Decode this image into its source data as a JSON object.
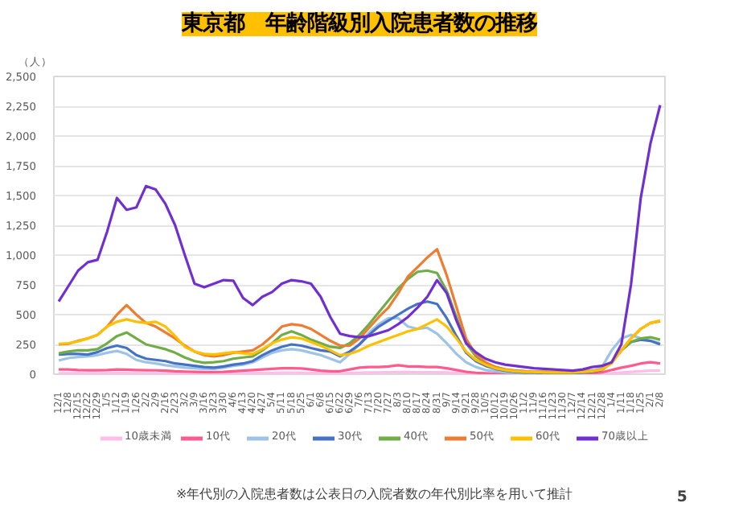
{
  "chart_data": {
    "type": "line",
    "title": "東京都　年齢階級別入院患者数の推移",
    "ylabel": "（人）",
    "categories": [
      "12/1",
      "12/8",
      "12/15",
      "12/22",
      "12/29",
      "1/5",
      "1/12",
      "1/19",
      "1/26",
      "2/2",
      "2/9",
      "2/16",
      "2/23",
      "3/2",
      "3/9",
      "3/16",
      "3/23",
      "3/30",
      "4/6",
      "4/13",
      "4/20",
      "4/27",
      "5/4",
      "5/11",
      "5/18",
      "5/25",
      "6/1",
      "6/8",
      "6/15",
      "6/22",
      "6/29",
      "7/6",
      "7/13",
      "7/20",
      "7/27",
      "8/3",
      "8/10",
      "8/17",
      "8/24",
      "8/31",
      "9/7",
      "9/14",
      "9/21",
      "9/28",
      "10/5",
      "10/12",
      "10/19",
      "10/26",
      "11/2",
      "11/9",
      "11/16",
      "11/23",
      "11/30",
      "12/7",
      "12/14",
      "12/21",
      "12/28",
      "1/4",
      "1/11",
      "1/18",
      "1/25",
      "2/1",
      "2/8"
    ],
    "series": [
      {
        "name": "10歳未満",
        "color": "#ffbde9",
        "values": [
          8,
          8,
          8,
          8,
          7,
          8,
          9,
          9,
          8,
          8,
          7,
          7,
          6,
          6,
          5,
          5,
          5,
          6,
          7,
          8,
          9,
          10,
          11,
          12,
          12,
          12,
          10,
          9,
          8,
          8,
          10,
          12,
          14,
          15,
          16,
          18,
          18,
          17,
          16,
          16,
          14,
          10,
          6,
          4,
          3,
          2,
          2,
          2,
          2,
          2,
          2,
          2,
          2,
          2,
          2,
          3,
          4,
          8,
          14,
          20,
          25,
          30,
          30
        ]
      },
      {
        "name": "10代",
        "color": "#ff5b8f",
        "values": [
          40,
          40,
          35,
          33,
          33,
          35,
          40,
          38,
          35,
          33,
          32,
          30,
          25,
          22,
          20,
          18,
          18,
          20,
          25,
          30,
          35,
          40,
          45,
          50,
          50,
          48,
          40,
          30,
          25,
          25,
          40,
          55,
          60,
          60,
          65,
          75,
          65,
          65,
          60,
          60,
          50,
          35,
          20,
          12,
          8,
          5,
          5,
          4,
          4,
          4,
          4,
          4,
          4,
          4,
          5,
          8,
          15,
          35,
          55,
          70,
          90,
          100,
          90
        ]
      },
      {
        "name": "20代",
        "color": "#9dc3e6",
        "values": [
          115,
          135,
          145,
          150,
          160,
          180,
          195,
          170,
          120,
          100,
          90,
          75,
          65,
          55,
          50,
          45,
          45,
          55,
          70,
          80,
          100,
          140,
          180,
          200,
          210,
          200,
          180,
          160,
          130,
          100,
          170,
          250,
          350,
          420,
          470,
          470,
          400,
          380,
          390,
          340,
          260,
          170,
          100,
          60,
          35,
          25,
          15,
          12,
          10,
          10,
          10,
          10,
          10,
          10,
          15,
          20,
          60,
          200,
          300,
          330,
          300,
          280,
          260
        ]
      },
      {
        "name": "30代",
        "color": "#4472c4",
        "values": [
          165,
          170,
          170,
          165,
          185,
          220,
          240,
          220,
          160,
          130,
          120,
          110,
          90,
          80,
          70,
          60,
          55,
          65,
          80,
          90,
          110,
          160,
          200,
          230,
          250,
          240,
          220,
          200,
          190,
          150,
          190,
          250,
          330,
          400,
          450,
          500,
          550,
          590,
          610,
          590,
          470,
          320,
          180,
          110,
          70,
          45,
          30,
          20,
          15,
          15,
          10,
          10,
          10,
          10,
          15,
          20,
          35,
          100,
          200,
          270,
          290,
          280,
          250
        ]
      },
      {
        "name": "40代",
        "color": "#70ad47",
        "values": [
          175,
          190,
          200,
          200,
          210,
          260,
          320,
          350,
          300,
          250,
          230,
          210,
          180,
          140,
          110,
          95,
          100,
          110,
          130,
          140,
          150,
          200,
          260,
          330,
          360,
          330,
          290,
          260,
          230,
          220,
          260,
          330,
          420,
          520,
          620,
          720,
          800,
          860,
          870,
          850,
          700,
          480,
          260,
          150,
          90,
          60,
          40,
          30,
          25,
          20,
          20,
          15,
          15,
          15,
          20,
          25,
          40,
          100,
          200,
          270,
          300,
          310,
          290
        ]
      },
      {
        "name": "50代",
        "color": "#ed7d31",
        "values": [
          250,
          255,
          280,
          300,
          330,
          400,
          500,
          580,
          500,
          430,
          400,
          350,
          300,
          240,
          190,
          160,
          150,
          160,
          180,
          190,
          200,
          250,
          320,
          400,
          420,
          410,
          380,
          330,
          280,
          240,
          240,
          300,
          390,
          480,
          560,
          680,
          820,
          900,
          980,
          1050,
          830,
          564,
          297,
          165,
          100,
          60,
          40,
          30,
          25,
          20,
          20,
          20,
          20,
          20,
          25,
          30,
          40,
          100,
          200,
          300,
          380,
          430,
          445
        ]
      },
      {
        "name": "60代",
        "color": "#ffc000",
        "values": [
          255,
          260,
          275,
          300,
          330,
          400,
          440,
          460,
          440,
          430,
          440,
          400,
          320,
          230,
          190,
          170,
          165,
          175,
          185,
          175,
          170,
          210,
          260,
          290,
          310,
          300,
          270,
          240,
          200,
          160,
          170,
          200,
          240,
          270,
          300,
          330,
          360,
          380,
          420,
          460,
          400,
          300,
          190,
          120,
          80,
          50,
          35,
          25,
          20,
          20,
          15,
          15,
          15,
          15,
          20,
          25,
          40,
          90,
          200,
          300,
          380,
          430,
          450
        ]
      },
      {
        "name": "70歳以上",
        "color": "#7030d0",
        "values": [
          611,
          740,
          870,
          940,
          960,
          1200,
          1480,
          1380,
          1400,
          1580,
          1550,
          1430,
          1250,
          1000,
          760,
          730,
          760,
          790,
          785,
          640,
          580,
          650,
          690,
          760,
          790,
          780,
          760,
          650,
          480,
          340,
          320,
          310,
          320,
          345,
          370,
          420,
          480,
          560,
          650,
          790,
          680,
          450,
          260,
          183,
          130,
          100,
          80,
          70,
          60,
          50,
          45,
          40,
          35,
          30,
          40,
          60,
          70,
          100,
          250,
          755,
          1480,
          1936,
          2260
        ]
      }
    ],
    "ylim": [
      0,
      2500
    ],
    "yticks": [
      0,
      250,
      500,
      750,
      {
        "value": 1000,
        "label": "1,000"
      },
      {
        "value": 1250,
        "label": "1,250"
      },
      {
        "value": 1500,
        "label": "1,500"
      },
      {
        "value": 1750,
        "label": "1,750"
      },
      {
        "value": 2000,
        "label": "2,000"
      },
      {
        "value": 2250,
        "label": "2,250"
      },
      {
        "value": 2500,
        "label": "2,500"
      }
    ],
    "grid": "y",
    "legend": "bottom",
    "marker": "none",
    "line_style": "solid",
    "annotations": [
      "※年代別の入院患者数は公表日の入院者数の年代別比率を用いて推計",
      "5"
    ]
  }
}
